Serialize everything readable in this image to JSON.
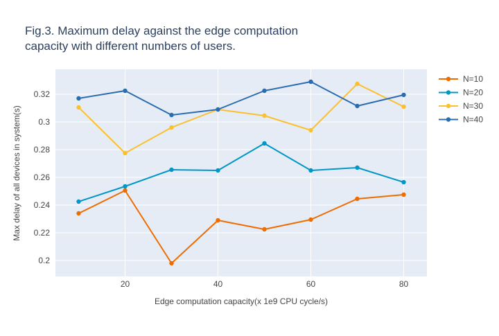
{
  "chart_data": {
    "type": "line",
    "title_lines": [
      "Fig.3. Maximum delay against the edge computation",
      "capacity with different numbers of users."
    ],
    "xlabel": "Edge computation capacity(x 1e9 CPU cycle/s)",
    "ylabel": "Max delay of all devices in system(s)",
    "x": [
      10,
      20,
      30,
      40,
      50,
      60,
      70,
      80
    ],
    "xlim": [
      5,
      85
    ],
    "ylim": [
      0.1885,
      0.338
    ],
    "x_ticks": [
      20,
      40,
      60,
      80
    ],
    "x_tick_labels": [
      "20",
      "40",
      "60",
      "80"
    ],
    "y_ticks": [
      0.2,
      0.22,
      0.24,
      0.26,
      0.28,
      0.3,
      0.32
    ],
    "y_tick_labels": [
      "0.2",
      "0.22",
      "0.24",
      "0.26",
      "0.28",
      "0.3",
      "0.32"
    ],
    "grid": true,
    "legend_position": "top-right",
    "series": [
      {
        "name": "N=10",
        "color": "#ef6c00",
        "values": [
          0.234,
          0.2505,
          0.198,
          0.229,
          0.2225,
          0.2295,
          0.2445,
          0.2475
        ]
      },
      {
        "name": "N=20",
        "color": "#0097c4",
        "values": [
          0.2425,
          0.2535,
          0.2655,
          0.265,
          0.2845,
          0.265,
          0.267,
          0.2565
        ]
      },
      {
        "name": "N=30",
        "color": "#fbc02d",
        "values": [
          0.3105,
          0.2775,
          0.296,
          0.309,
          0.3045,
          0.294,
          0.3275,
          0.311
        ]
      },
      {
        "name": "N=40",
        "color": "#2b6cb0",
        "values": [
          0.317,
          0.3225,
          0.305,
          0.309,
          0.3225,
          0.329,
          0.3115,
          0.3195
        ]
      }
    ]
  },
  "colors": {
    "plot_background": "#e5ecf6",
    "grid": "#ffffff",
    "text": "#444444",
    "title": "#2a3f5f"
  }
}
